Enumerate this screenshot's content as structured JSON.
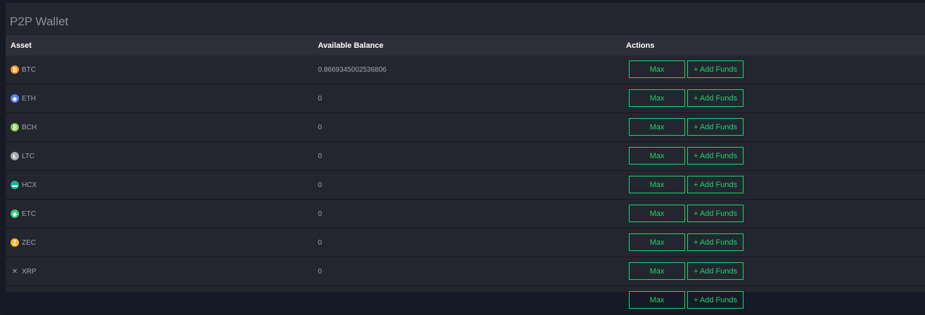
{
  "title": "P2P Wallet",
  "columns": {
    "asset": "Asset",
    "balance": "Available Balance",
    "actions": "Actions"
  },
  "buttons": {
    "max": "Max",
    "add_funds": "+ Add Funds"
  },
  "colors": {
    "accent": "#1fd36e"
  },
  "rows": [
    {
      "symbol": "BTC",
      "balance": "0.8669345002536806",
      "icon": "bitcoin-icon",
      "color": "#f7931a",
      "glyph": "₿"
    },
    {
      "symbol": "ETH",
      "balance": "0",
      "icon": "ethereum-icon",
      "color": "#627eea",
      "glyph": "◆"
    },
    {
      "symbol": "BCH",
      "balance": "0",
      "icon": "bitcoin-cash-icon",
      "color": "#8dc351",
      "glyph": "₿"
    },
    {
      "symbol": "LTC",
      "balance": "0",
      "icon": "litecoin-icon",
      "color": "#a6a9aa",
      "glyph": "Ł"
    },
    {
      "symbol": "HCX",
      "balance": "0",
      "icon": "hcx-icon",
      "color": "#0fb39a",
      "glyph": "▬"
    },
    {
      "symbol": "ETC",
      "balance": "0",
      "icon": "ethereum-classic-icon",
      "color": "#33d17a",
      "glyph": "◆"
    },
    {
      "symbol": "ZEC",
      "balance": "0",
      "icon": "zcash-icon",
      "color": "#f4b728",
      "glyph": "Z"
    },
    {
      "symbol": "XRP",
      "balance": "0",
      "icon": "ripple-icon",
      "color": "transparent",
      "glyph": "✕"
    },
    {
      "symbol": "",
      "balance": "",
      "icon": "",
      "color": "transparent",
      "glyph": ""
    }
  ]
}
